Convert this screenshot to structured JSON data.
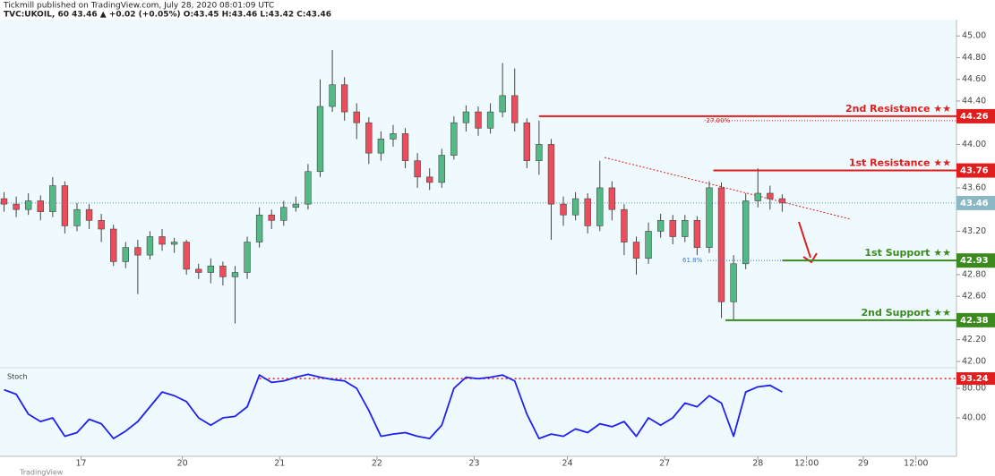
{
  "chart_data": {
    "type": "candlestick",
    "title": "Tickmill published on TradingView.com, July 28, 2020 08:01:09 UTC",
    "subtitle": "TVC:UKOIL, 60  43.46 ▲ +0.02 (+0.05%) O:43.45 H:43.46 L:43.42 C:43.46",
    "watermark": "TradingView",
    "up_color": "#53b987",
    "down_color": "#eb4d5c",
    "xlim": [
      0,
      236
    ],
    "xticks": [
      {
        "value": 20,
        "label": "17"
      },
      {
        "value": 45,
        "label": "20"
      },
      {
        "value": 69,
        "label": "21"
      },
      {
        "value": 93,
        "label": "22"
      },
      {
        "value": 117,
        "label": "23"
      },
      {
        "value": 140,
        "label": "24"
      },
      {
        "value": 164,
        "label": "27"
      },
      {
        "value": 187,
        "label": "28"
      },
      {
        "value": 199,
        "label": "12:00"
      },
      {
        "value": 213,
        "label": "29"
      },
      {
        "value": 226,
        "label": "12:00"
      }
    ],
    "ylim": [
      41.95,
      45.15
    ],
    "yticks": [
      {
        "value": 45,
        "label": "45.00"
      },
      {
        "value": 44.8,
        "label": "44.80"
      },
      {
        "value": 44.6,
        "label": "44.60"
      },
      {
        "value": 44.4,
        "label": "44.40"
      },
      {
        "value": 44,
        "label": "44.00"
      },
      {
        "value": 43.6,
        "label": "43.60"
      },
      {
        "value": 43.2,
        "label": "43.20"
      },
      {
        "value": 42.8,
        "label": "42.80"
      },
      {
        "value": 42.6,
        "label": "42.60"
      },
      {
        "value": 42.2,
        "label": "42.20"
      },
      {
        "value": 42,
        "label": "42.00"
      }
    ],
    "x": [
      1,
      4,
      7,
      10,
      13,
      16,
      19,
      22,
      25,
      28,
      31,
      34,
      37,
      40,
      43,
      46,
      49,
      52,
      55,
      58,
      61,
      64,
      67,
      70,
      73,
      76,
      79,
      82,
      85,
      88,
      91,
      94,
      97,
      100,
      103,
      106,
      109,
      112,
      115,
      118,
      121,
      124,
      127,
      130,
      133,
      136,
      139,
      142,
      145,
      148,
      151,
      154,
      157,
      160,
      163,
      166,
      169,
      172,
      175,
      178,
      181,
      184,
      187,
      190,
      193
    ],
    "open": [
      43.5,
      43.45,
      43.4,
      43.48,
      43.38,
      43.62,
      43.25,
      43.4,
      43.3,
      43.22,
      42.92,
      43.05,
      42.98,
      43.15,
      43.08,
      43.1,
      42.85,
      42.82,
      42.88,
      42.78,
      42.82,
      43.1,
      43.35,
      43.3,
      43.42,
      43.45,
      43.75,
      44.35,
      44.55,
      44.3,
      44.2,
      43.92,
      44.05,
      44.1,
      43.85,
      43.7,
      43.65,
      43.9,
      44.2,
      44.3,
      44.15,
      44.3,
      44.45,
      44.2,
      43.85,
      44.0,
      43.45,
      43.35,
      43.5,
      43.25,
      43.6,
      43.4,
      43.1,
      42.95,
      43.2,
      43.3,
      43.15,
      43.3,
      43.05,
      43.6,
      42.55,
      42.9,
      43.48,
      43.55,
      43.5
    ],
    "high": [
      43.56,
      43.52,
      43.55,
      43.53,
      43.7,
      43.66,
      43.46,
      43.45,
      43.36,
      43.26,
      43.1,
      43.12,
      43.2,
      43.22,
      43.14,
      43.12,
      42.9,
      42.95,
      42.92,
      42.88,
      43.15,
      43.42,
      43.4,
      43.48,
      43.52,
      43.82,
      44.6,
      44.87,
      44.62,
      44.38,
      44.25,
      44.12,
      44.18,
      44.15,
      43.92,
      43.78,
      43.96,
      44.26,
      44.36,
      44.35,
      44.38,
      44.75,
      44.7,
      44.24,
      44.22,
      44.05,
      43.52,
      43.56,
      43.55,
      43.85,
      43.66,
      43.45,
      43.15,
      43.28,
      43.36,
      43.35,
      43.35,
      43.34,
      43.66,
      43.65,
      42.98,
      43.55,
      43.78,
      43.62,
      43.54
    ],
    "low": [
      43.38,
      43.33,
      43.35,
      43.3,
      43.33,
      43.18,
      43.2,
      43.22,
      43.1,
      42.88,
      42.86,
      42.62,
      42.94,
      43.02,
      43.0,
      42.8,
      42.76,
      42.72,
      42.7,
      42.35,
      42.76,
      43.05,
      43.22,
      43.25,
      43.38,
      43.4,
      43.7,
      44.3,
      44.22,
      44.05,
      43.82,
      43.85,
      43.98,
      43.78,
      43.6,
      43.58,
      43.6,
      43.86,
      44.12,
      44.08,
      44.1,
      44.25,
      44.12,
      43.78,
      43.72,
      43.12,
      43.25,
      43.3,
      43.18,
      43.2,
      43.3,
      42.98,
      42.8,
      42.9,
      43.14,
      43.08,
      43.1,
      42.98,
      43.0,
      42.4,
      42.38,
      42.85,
      43.42,
      43.4,
      43.38
    ],
    "close": [
      43.45,
      43.4,
      43.48,
      43.38,
      43.62,
      43.25,
      43.4,
      43.3,
      43.22,
      42.92,
      43.05,
      42.98,
      43.15,
      43.08,
      43.1,
      42.85,
      42.82,
      42.88,
      42.78,
      42.82,
      43.1,
      43.35,
      43.3,
      43.42,
      43.45,
      43.75,
      44.35,
      44.55,
      44.3,
      44.2,
      43.92,
      44.05,
      44.1,
      43.85,
      43.7,
      43.65,
      43.9,
      44.2,
      44.3,
      44.15,
      44.3,
      44.45,
      44.2,
      43.85,
      44.0,
      43.45,
      43.35,
      43.5,
      43.25,
      43.6,
      43.4,
      43.1,
      42.95,
      43.2,
      43.3,
      43.15,
      43.3,
      43.05,
      43.6,
      42.55,
      42.9,
      43.48,
      43.55,
      43.5,
      43.46
    ],
    "last_price": 43.46,
    "levels": [
      {
        "name": "2nd Resistance ★★",
        "value": 44.26,
        "color": "#e01e1e",
        "start": 133
      },
      {
        "name": "1st Resistance ★★",
        "value": 43.76,
        "color": "#e01e1e",
        "start": 176
      },
      {
        "name": "1st Support ★★",
        "value": 42.93,
        "color": "#3c8a1e",
        "start": 193
      },
      {
        "name": "2nd Support ★★",
        "value": 42.38,
        "color": "#3c8a1e",
        "start": 179
      }
    ],
    "annotations": [
      {
        "text": "-27.00%",
        "color": "#e01e1e"
      },
      {
        "text": "61.8%",
        "color": "#3c78c8"
      }
    ],
    "stoch": {
      "name": "Stoch",
      "color": "#2020f0",
      "ylim": [
        0,
        100
      ],
      "yticks": [
        {
          "value": 80,
          "label": "80.00"
        },
        {
          "value": 40,
          "label": "40.00"
        }
      ],
      "level": 93.24,
      "level_color": "#e01e1e",
      "values": [
        78,
        72,
        45,
        35,
        40,
        15,
        20,
        38,
        32,
        12,
        22,
        35,
        55,
        75,
        70,
        62,
        40,
        30,
        40,
        42,
        55,
        98,
        88,
        90,
        95,
        99,
        95,
        92,
        90,
        80,
        50,
        15,
        18,
        20,
        15,
        12,
        30,
        80,
        95,
        93,
        95,
        98,
        90,
        45,
        12,
        18,
        15,
        25,
        20,
        32,
        28,
        35,
        15,
        40,
        30,
        40,
        60,
        55,
        70,
        60,
        15,
        75,
        82,
        84,
        75
      ]
    }
  }
}
